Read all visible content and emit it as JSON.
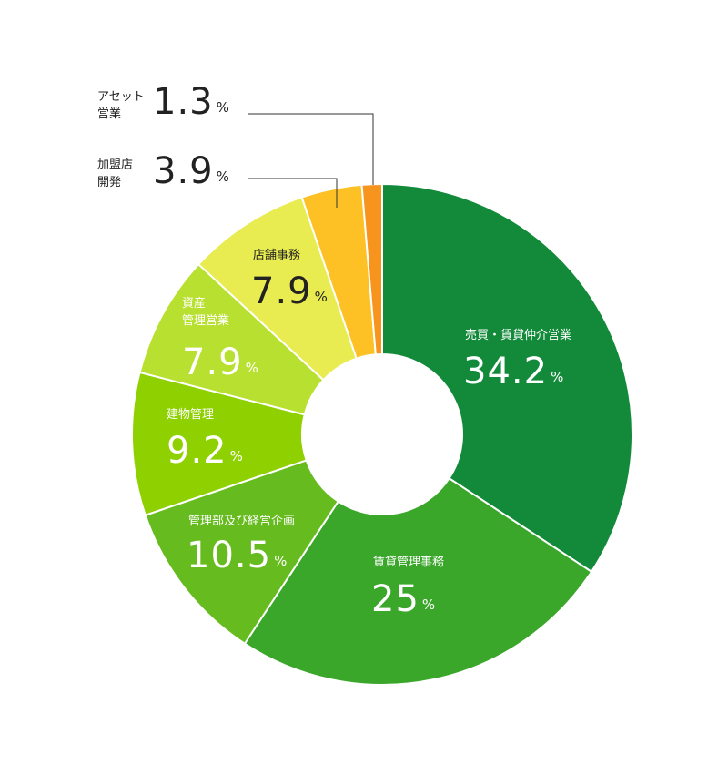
{
  "chart_data": {
    "type": "donut",
    "series": [
      {
        "name": "売買・賃貸仲介営業",
        "color": "#128a3a",
        "values": [
          34.2
        ],
        "value_labels": [
          "34.2%"
        ]
      },
      {
        "name": "賃貸管理事務",
        "color": "#3aa72a",
        "values": [
          25
        ],
        "value_labels": [
          "25%"
        ]
      },
      {
        "name": "管理部及び経営企画",
        "color": "#66bb1e",
        "values": [
          10.5
        ],
        "value_labels": [
          "10.5%"
        ]
      },
      {
        "name": "建物管理",
        "color": "#8ed000",
        "values": [
          9.2
        ],
        "value_labels": [
          "9.2%"
        ]
      },
      {
        "name": "資産\n管理営業",
        "color": "#b8e030",
        "values": [
          7.9
        ],
        "value_labels": [
          "7.9%"
        ]
      },
      {
        "name": "店舗事務",
        "color": "#e8ec50",
        "values": [
          7.9
        ],
        "value_labels": [
          "7.9%"
        ]
      },
      {
        "name": "加盟店\n開発",
        "color": "#fdc125",
        "values": [
          3.9
        ],
        "value_labels": [
          "3.9%"
        ]
      },
      {
        "name": "アセット\n営業",
        "color": "#f6941e",
        "values": [
          1.3
        ],
        "value_labels": [
          "1.3%"
        ]
      }
    ]
  }
}
